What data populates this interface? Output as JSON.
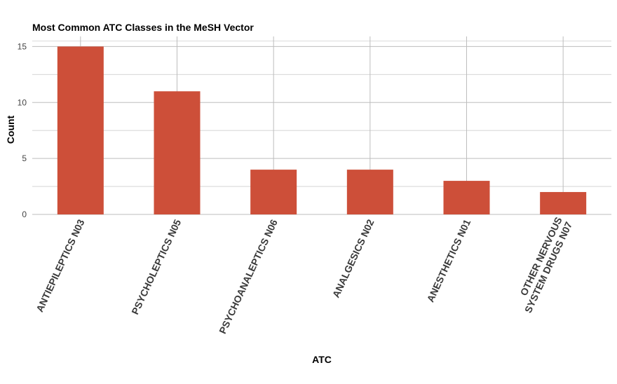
{
  "chart_data": {
    "type": "bar",
    "title": "Most Common ATC Classes in the MeSH Vector",
    "xlabel": "ATC",
    "ylabel": "Count",
    "categories": [
      "ANTIEPILEPTICS N03",
      "PSYCHOLEPTICS N05",
      "PSYCHOANALEPTICS N06",
      "ANALGESICS N02",
      "ANESTHETICS N01",
      "OTHER NERVOUS SYSTEM DRUGS N07"
    ],
    "category_lines": [
      [
        "ANTIEPILEPTICS N03"
      ],
      [
        "PSYCHOLEPTICS N05"
      ],
      [
        "PSYCHOANALEPTICS N06"
      ],
      [
        "ANALGESICS N02"
      ],
      [
        "ANESTHETICS N01"
      ],
      [
        "OTHER NERVOUS",
        "SYSTEM DRUGS N07"
      ]
    ],
    "values": [
      15,
      11,
      4,
      4,
      3,
      2
    ],
    "ylim": [
      0,
      15.9
    ],
    "yticks": [
      0,
      5,
      10,
      15
    ],
    "grid": true,
    "legend": "none",
    "bar_color": "#cd4f39"
  }
}
